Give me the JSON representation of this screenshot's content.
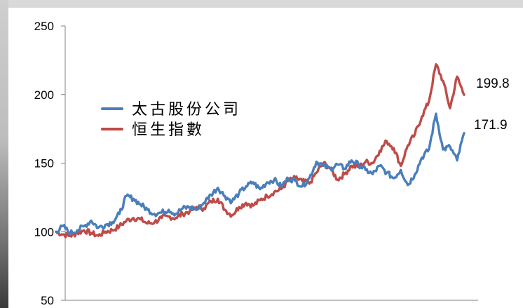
{
  "chart_data": {
    "type": "line",
    "title": "",
    "xlabel": "",
    "ylabel": "",
    "ylim": [
      50,
      250
    ],
    "yticks": [
      250,
      200,
      150,
      100,
      50
    ],
    "grid": false,
    "legend_position": "upper-left",
    "colors": {
      "blue": "#4a7ebb",
      "red": "#be4b48"
    },
    "series": [
      {
        "name": "太古股份公司",
        "color": "#4a7ebb",
        "end_label": "171.9",
        "values": [
          100,
          104,
          99,
          101,
          104,
          108,
          103,
          105,
          107,
          113,
          126,
          124,
          120,
          116,
          113,
          114,
          116,
          113,
          117,
          118,
          116,
          121,
          127,
          132,
          126,
          122,
          128,
          133,
          136,
          131,
          136,
          138,
          133,
          139,
          137,
          133,
          139,
          151,
          148,
          146,
          149,
          146,
          152,
          149,
          145,
          142,
          148,
          143,
          139,
          145,
          134,
          142,
          154,
          160,
          186,
          160,
          162,
          152,
          171.9
        ]
      },
      {
        "name": "恒生指數",
        "color": "#be4b48",
        "end_label": "199.8",
        "values": [
          100,
          98,
          97,
          99,
          101,
          99,
          97,
          100,
          101,
          104,
          108,
          110,
          109,
          106,
          107,
          110,
          111,
          110,
          113,
          115,
          118,
          117,
          122,
          124,
          116,
          112,
          118,
          121,
          119,
          123,
          126,
          129,
          131,
          137,
          139,
          137,
          135,
          143,
          150,
          146,
          138,
          142,
          148,
          147,
          151,
          150,
          159,
          166,
          161,
          148,
          163,
          171,
          184,
          195,
          222,
          210,
          190,
          213,
          199.8
        ]
      }
    ]
  }
}
